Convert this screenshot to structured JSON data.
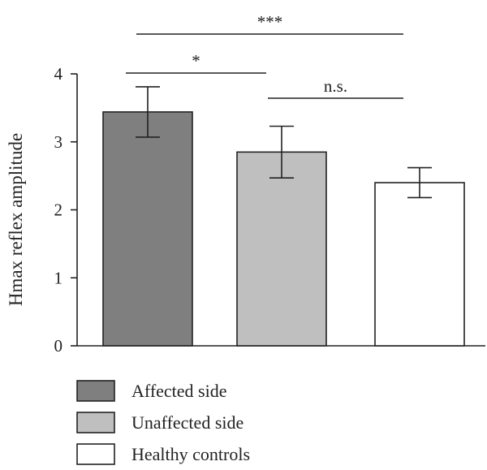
{
  "chart_data": {
    "type": "bar",
    "title": "",
    "xlabel": "",
    "ylabel": "Hmax reflex amplitude",
    "ylim": [
      0,
      4
    ],
    "yticks": [
      "0",
      "1",
      "2",
      "3",
      "4"
    ],
    "grid": false,
    "legend_position": "bottom-left",
    "categories": [
      "Affected side",
      "Unaffected side",
      "Healthy controls"
    ],
    "values": [
      3.44,
      2.85,
      2.4
    ],
    "error": [
      0.37,
      0.38,
      0.22
    ],
    "colors": [
      "#7f7f7f",
      "#bfbfbf",
      "#ffffff"
    ],
    "significance": [
      {
        "from": 0,
        "to": 1,
        "label": "*"
      },
      {
        "from": 1,
        "to": 2,
        "label": "n.s."
      },
      {
        "from": 0,
        "to": 2,
        "label": "***"
      }
    ]
  }
}
